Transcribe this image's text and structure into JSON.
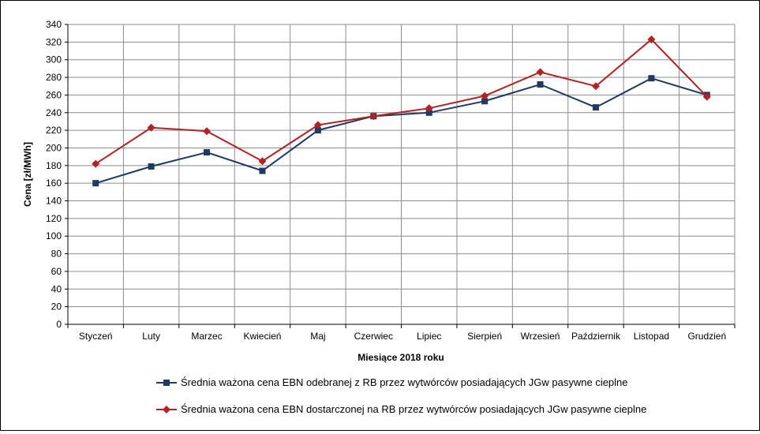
{
  "chart_data": {
    "type": "line",
    "ylabel": "Cena [zł/MWh]",
    "xlabel": "Miesiące 2018  roku",
    "ylim": [
      0,
      340
    ],
    "ytick_step": 20,
    "grid": true,
    "legend_position": "bottom",
    "categories": [
      "Styczeń",
      "Luty",
      "Marzec",
      "Kwiecień",
      "Maj",
      "Czerwiec",
      "Lipiec",
      "Sierpień",
      "Wrzesień",
      "Październik",
      "Listopad",
      "Grudzień"
    ],
    "series": [
      {
        "name": "Średnia ważona cena EBN odebranej z RB przez wytwórców posiadających JGw pasywne cieplne",
        "color": "#1f3864",
        "marker": "square",
        "values": [
          160,
          179,
          195,
          174,
          220,
          236,
          240,
          253,
          272,
          246,
          279,
          260
        ]
      },
      {
        "name": "Średnia ważona cena EBN dostarczonej na RB przez wytwórców posiadających JGw pasywne cieplne",
        "color": "#b22222",
        "marker": "diamond",
        "values": [
          182,
          223,
          219,
          185,
          226,
          236,
          245,
          259,
          286,
          270,
          323,
          258
        ]
      }
    ]
  }
}
